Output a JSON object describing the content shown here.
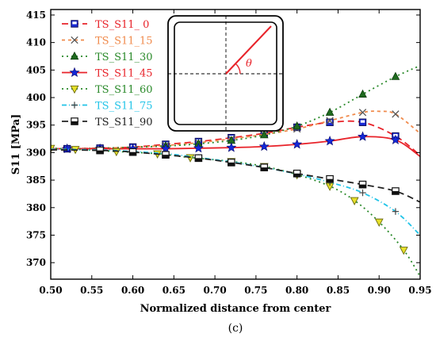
{
  "chart_data": {
    "type": "line",
    "title": "",
    "xlabel": "Normalized distance from center",
    "ylabel": "S11 [MPa]",
    "caption": "(c)",
    "xlim": [
      0.5,
      0.95
    ],
    "ylim": [
      367,
      416
    ],
    "xticks": [
      "0.50",
      "0.55",
      "0.60",
      "0.65",
      "0.70",
      "0.75",
      "0.80",
      "0.85",
      "0.90",
      "0.95"
    ],
    "yticks": [
      "370",
      "375",
      "380",
      "385",
      "390",
      "395",
      "400",
      "405",
      "410",
      "415"
    ],
    "legend_position": "top-left",
    "grid": false,
    "inset": {
      "theta_label": "θ"
    },
    "series": [
      {
        "name": "TS_S11_ 0",
        "color": "#e8232a",
        "dash": "8,5",
        "marker": "square-blue",
        "x": [
          0.5,
          0.52,
          0.56,
          0.6,
          0.64,
          0.68,
          0.72,
          0.76,
          0.8,
          0.84,
          0.88,
          0.92,
          0.95
        ],
        "y": [
          390.7,
          390.7,
          390.8,
          391.0,
          391.5,
          392.0,
          392.7,
          393.5,
          394.6,
          395.5,
          395.5,
          393.0,
          389.5
        ],
        "markers_at": [
          0.52,
          0.56,
          0.6,
          0.64,
          0.68,
          0.72,
          0.76,
          0.8,
          0.84,
          0.88,
          0.92
        ]
      },
      {
        "name": "TS_S11_15",
        "color": "#f08a4b",
        "dash": "4,4",
        "marker": "x-gray",
        "x": [
          0.5,
          0.52,
          0.56,
          0.6,
          0.64,
          0.68,
          0.72,
          0.76,
          0.8,
          0.84,
          0.88,
          0.9,
          0.92,
          0.95
        ],
        "y": [
          390.7,
          390.7,
          390.8,
          391.0,
          391.3,
          391.8,
          392.5,
          393.3,
          394.3,
          395.8,
          397.3,
          397.5,
          397.0,
          393.5
        ],
        "markers_at": [
          0.64,
          0.68,
          0.72,
          0.76,
          0.8,
          0.84,
          0.88,
          0.92
        ]
      },
      {
        "name": "TS_S11_30",
        "color": "#2a8a2a",
        "dash": "2,4",
        "marker": "triangle-green",
        "x": [
          0.5,
          0.56,
          0.64,
          0.68,
          0.72,
          0.76,
          0.8,
          0.84,
          0.88,
          0.92,
          0.95
        ],
        "y": [
          390.7,
          390.8,
          391.2,
          391.6,
          392.2,
          393.2,
          394.8,
          397.3,
          400.6,
          403.8,
          405.8
        ],
        "markers_at": [
          0.64,
          0.68,
          0.72,
          0.76,
          0.8,
          0.84,
          0.88,
          0.92
        ]
      },
      {
        "name": "TS_S11_45",
        "color": "#e8232a",
        "dash": "",
        "marker": "star-blue",
        "x": [
          0.5,
          0.52,
          0.56,
          0.6,
          0.64,
          0.68,
          0.72,
          0.76,
          0.8,
          0.84,
          0.88,
          0.92,
          0.95
        ],
        "y": [
          390.7,
          390.7,
          390.7,
          390.7,
          390.7,
          390.8,
          390.9,
          391.1,
          391.5,
          392.1,
          392.9,
          392.3,
          389.3
        ],
        "markers_at": [
          0.52,
          0.56,
          0.6,
          0.64,
          0.68,
          0.72,
          0.76,
          0.8,
          0.84,
          0.88,
          0.92
        ]
      },
      {
        "name": "TS_S11_60",
        "color": "#2a8a2a",
        "dash": "2,4",
        "marker": "triangle-down-yellow",
        "x": [
          0.5,
          0.53,
          0.58,
          0.63,
          0.67,
          0.72,
          0.76,
          0.8,
          0.84,
          0.87,
          0.9,
          0.93,
          0.95
        ],
        "y": [
          390.8,
          390.6,
          390.2,
          389.8,
          389.1,
          388.4,
          387.5,
          386.0,
          383.9,
          381.3,
          377.4,
          372.3,
          367.5
        ],
        "markers_at": [
          0.5,
          0.53,
          0.58,
          0.63,
          0.67,
          0.72,
          0.76,
          0.8,
          0.84,
          0.87,
          0.9,
          0.93
        ]
      },
      {
        "name": "TS_S11_75",
        "color": "#22c4e8",
        "dash": "6,3,1,3",
        "marker": "plus-gray",
        "x": [
          0.5,
          0.56,
          0.6,
          0.64,
          0.68,
          0.72,
          0.76,
          0.8,
          0.84,
          0.88,
          0.92,
          0.95
        ],
        "y": [
          390.6,
          390.5,
          390.2,
          389.8,
          389.1,
          388.3,
          387.3,
          386.1,
          384.6,
          382.7,
          379.3,
          375.0
        ],
        "markers_at": [
          0.6,
          0.64,
          0.68,
          0.72,
          0.76,
          0.8,
          0.84,
          0.88,
          0.92
        ]
      },
      {
        "name": "TS_S11_90",
        "color": "#222222",
        "dash": "8,5",
        "marker": "square-black",
        "x": [
          0.5,
          0.56,
          0.6,
          0.64,
          0.68,
          0.72,
          0.76,
          0.8,
          0.84,
          0.88,
          0.92,
          0.95
        ],
        "y": [
          390.5,
          390.4,
          390.1,
          389.6,
          389.0,
          388.2,
          387.3,
          386.2,
          385.2,
          384.2,
          383.0,
          381.0
        ],
        "markers_at": [
          0.56,
          0.6,
          0.64,
          0.68,
          0.72,
          0.76,
          0.8,
          0.84,
          0.88,
          0.92
        ]
      }
    ]
  }
}
